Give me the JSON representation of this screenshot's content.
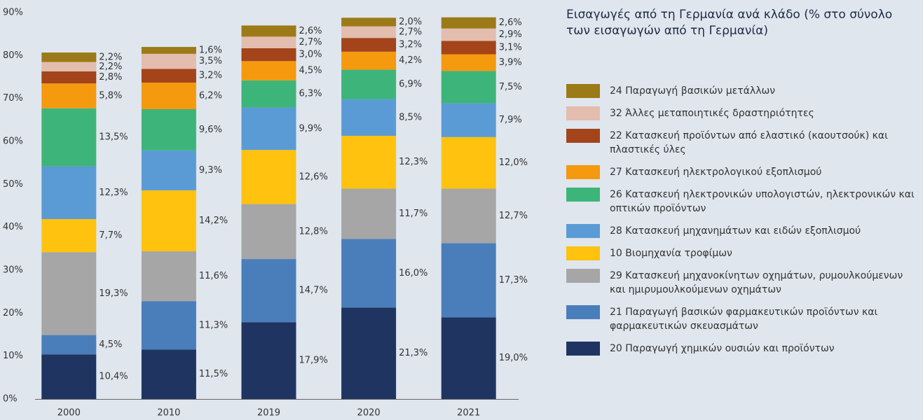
{
  "chart_data": {
    "type": "stacked_bar",
    "title": "Εισαγωγές από τη Γερμανία ανά κλάδο (% στο σύνολο των εισαγωγών από τη Γερμανία)",
    "categories": [
      "2000",
      "2010",
      "2019",
      "2020",
      "2021"
    ],
    "ylim": [
      0,
      90
    ],
    "yticks": [
      {
        "value": 0,
        "label": "0%"
      },
      {
        "value": 10,
        "label": "10%"
      },
      {
        "value": 20,
        "label": "20%"
      },
      {
        "value": 30,
        "label": "30%"
      },
      {
        "value": 40,
        "label": "40%"
      },
      {
        "value": 50,
        "label": "50%"
      },
      {
        "value": 60,
        "label": "60%"
      },
      {
        "value": 70,
        "label": "70%"
      },
      {
        "value": 80,
        "label": "80%"
      },
      {
        "value": 90,
        "label": "90%"
      }
    ],
    "legend": "right",
    "series": [
      {
        "name": "20 Παραγωγή χημικών ουσιών και προϊόντων",
        "color": "#1f3460",
        "values": [
          10.4,
          11.5,
          17.9,
          21.3,
          19.0
        ],
        "value_labels": [
          "10,4%",
          "11,5%",
          "17,9%",
          "21,3%",
          "19,0%"
        ]
      },
      {
        "name": "21 Παραγωγή βασικών φαρμακευτικών προϊόντων και φαρμακευτικών σκευασμάτων",
        "color": "#4a7ebb",
        "values": [
          4.5,
          11.3,
          14.7,
          16.0,
          17.3
        ],
        "value_labels": [
          "4,5%",
          "11,3%",
          "14,7%",
          "16,0%",
          "17,3%"
        ]
      },
      {
        "name": "29 Κατασκευή μηχανοκίνητων οχημάτων, ρυμουλκούμενων και ημιρυμουλκούμενων οχημάτων",
        "color": "#a6a6a6",
        "values": [
          19.3,
          11.6,
          12.8,
          11.7,
          12.7
        ],
        "value_labels": [
          "19,3%",
          "11,6%",
          "12,8%",
          "11,7%",
          "12,7%"
        ]
      },
      {
        "name": "10 Βιομηχανία τροφίμων",
        "color": "#ffc20e",
        "values": [
          7.7,
          14.2,
          12.6,
          12.3,
          12.0
        ],
        "value_labels": [
          "7,7%",
          "14,2%",
          "12,6%",
          "12,3%",
          "12,0%"
        ]
      },
      {
        "name": "28 Κατασκευή μηχανημάτων και ειδών εξοπλισμού",
        "color": "#5b9bd5",
        "values": [
          12.3,
          9.3,
          9.9,
          8.5,
          7.9
        ],
        "value_labels": [
          "12,3%",
          "9,3%",
          "9,9%",
          "8,5%",
          "7,9%"
        ]
      },
      {
        "name": "26 Κατασκευή ηλεκτρονικών υπολογιστών, ηλεκτρονικών και οπτικών προϊόντων",
        "color": "#3db57a",
        "values": [
          13.5,
          9.6,
          6.3,
          6.9,
          7.5
        ],
        "value_labels": [
          "13,5%",
          "9,6%",
          "6,3%",
          "6,9%",
          "7,5%"
        ]
      },
      {
        "name": "27 Κατασκευή ηλεκτρολογικού εξοπλισμού",
        "color": "#f5990f",
        "values": [
          5.8,
          6.2,
          4.5,
          4.2,
          3.9
        ],
        "value_labels": [
          "5,8%",
          "6,2%",
          "4,5%",
          "4,2%",
          "3,9%"
        ]
      },
      {
        "name": "22 Κατασκευή προϊόντων από ελαστικό (καουτσούκ) και πλαστικές ύλες",
        "color": "#a3441a",
        "values": [
          2.8,
          3.2,
          3.0,
          3.2,
          3.1
        ],
        "value_labels": [
          "2,8%",
          "3,2%",
          "3,0%",
          "3,2%",
          "3,1%"
        ]
      },
      {
        "name": "32 Άλλες μεταποιητικές δραστηριότητες",
        "color": "#e3bdae",
        "values": [
          2.2,
          3.5,
          2.7,
          2.7,
          2.9
        ],
        "value_labels": [
          "2,2%",
          "3,5%",
          "2,7%",
          "2,7%",
          "2,9%"
        ]
      },
      {
        "name": "24 Παραγωγή βασικών μετάλλων",
        "color": "#9c7a17",
        "values": [
          2.2,
          1.6,
          2.6,
          2.0,
          2.6
        ],
        "value_labels": [
          "2,2%",
          "1,6%",
          "2,6%",
          "2,0%",
          "2,6%"
        ]
      }
    ]
  }
}
